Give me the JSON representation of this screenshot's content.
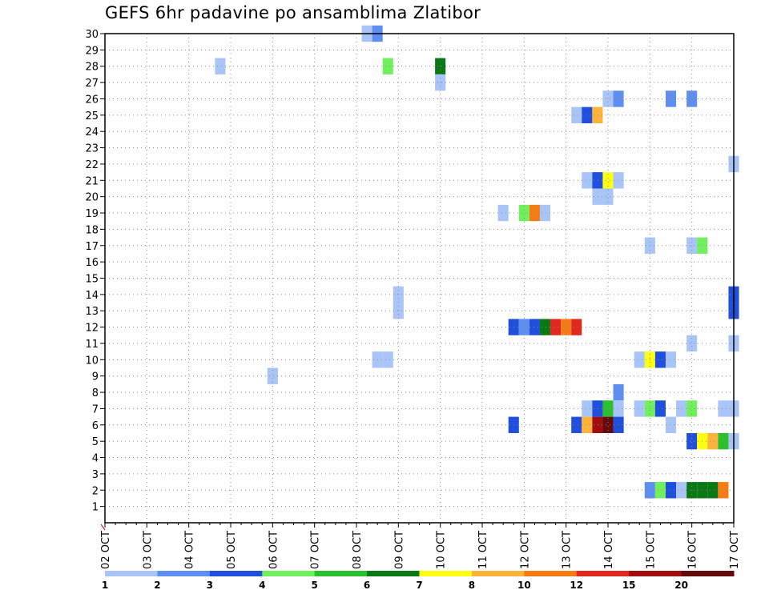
{
  "chart_data": {
    "type": "heatmap",
    "title": "GEFS 6hr padavine po ansamblima Zlatibor",
    "xlabel": "",
    "ylabel": "",
    "y_ticks": [
      1,
      2,
      3,
      4,
      5,
      6,
      7,
      8,
      9,
      10,
      11,
      12,
      13,
      14,
      15,
      16,
      17,
      18,
      19,
      20,
      21,
      22,
      23,
      24,
      25,
      26,
      27,
      28,
      29,
      30
    ],
    "ylim": [
      0,
      30
    ],
    "x_ticks": [
      "02 OCT",
      "03 OCT",
      "04 OCT",
      "05 OCT",
      "06 OCT",
      "07 OCT",
      "08 OCT",
      "09 OCT",
      "10 OCT",
      "11 OCT",
      "12 OCT",
      "13 OCT",
      "14 OCT",
      "15 OCT",
      "16 OCT",
      "17 OCT"
    ],
    "x_unit": "days from 02 OCT 00Z, 6h steps",
    "xlim": [
      0,
      15
    ],
    "grid": true,
    "colorbar": {
      "position": "bottom",
      "labels": [
        "1",
        "2",
        "3",
        "4",
        "5",
        "6",
        "7",
        "8",
        "10",
        "12",
        "15",
        "20"
      ],
      "colors": [
        "#a9c4f7",
        "#5e8ff0",
        "#1f4fdc",
        "#6ff05c",
        "#2cc02c",
        "#0a7814",
        "#ffff14",
        "#ffb33a",
        "#f57b14",
        "#e0281e",
        "#a00e10",
        "#640a0a"
      ]
    },
    "cells": [
      {
        "member": 30,
        "day": 6.25,
        "value": 1
      },
      {
        "member": 30,
        "day": 6.5,
        "value": 2
      },
      {
        "member": 28,
        "day": 2.75,
        "value": 1
      },
      {
        "member": 28,
        "day": 6.75,
        "value": 4
      },
      {
        "member": 28,
        "day": 8.0,
        "value": 6
      },
      {
        "member": 27,
        "day": 8.0,
        "value": 1
      },
      {
        "member": 26,
        "day": 12.0,
        "value": 1
      },
      {
        "member": 26,
        "day": 12.25,
        "value": 2
      },
      {
        "member": 26,
        "day": 13.5,
        "value": 2
      },
      {
        "member": 26,
        "day": 14.0,
        "value": 2
      },
      {
        "member": 25,
        "day": 11.25,
        "value": 1
      },
      {
        "member": 25,
        "day": 11.5,
        "value": 3
      },
      {
        "member": 25,
        "day": 11.75,
        "value": 9
      },
      {
        "member": 22,
        "day": 15.0,
        "value": 1
      },
      {
        "member": 21,
        "day": 11.5,
        "value": 1
      },
      {
        "member": 21,
        "day": 11.75,
        "value": 3
      },
      {
        "member": 21,
        "day": 12.0,
        "value": 7
      },
      {
        "member": 21,
        "day": 12.25,
        "value": 1
      },
      {
        "member": 20,
        "day": 11.75,
        "value": 1
      },
      {
        "member": 20,
        "day": 12.0,
        "value": 1
      },
      {
        "member": 19,
        "day": 9.5,
        "value": 1
      },
      {
        "member": 19,
        "day": 10.0,
        "value": 4
      },
      {
        "member": 19,
        "day": 10.25,
        "value": 10
      },
      {
        "member": 19,
        "day": 10.5,
        "value": 1
      },
      {
        "member": 17,
        "day": 13.0,
        "value": 1
      },
      {
        "member": 17,
        "day": 14.0,
        "value": 1
      },
      {
        "member": 17,
        "day": 14.25,
        "value": 4
      },
      {
        "member": 14,
        "day": 7.0,
        "value": 1
      },
      {
        "member": 14,
        "day": 15.0,
        "value": 3
      },
      {
        "member": 13,
        "day": 7.0,
        "value": 1
      },
      {
        "member": 13,
        "day": 15.0,
        "value": 3
      },
      {
        "member": 12,
        "day": 9.75,
        "value": 3
      },
      {
        "member": 12,
        "day": 10.0,
        "value": 2
      },
      {
        "member": 12,
        "day": 10.25,
        "value": 3
      },
      {
        "member": 12,
        "day": 10.5,
        "value": 6
      },
      {
        "member": 12,
        "day": 10.75,
        "value": 12
      },
      {
        "member": 12,
        "day": 11.0,
        "value": 10
      },
      {
        "member": 12,
        "day": 11.25,
        "value": 12
      },
      {
        "member": 11,
        "day": 14.0,
        "value": 1
      },
      {
        "member": 11,
        "day": 15.0,
        "value": 1
      },
      {
        "member": 10,
        "day": 6.5,
        "value": 1
      },
      {
        "member": 10,
        "day": 6.75,
        "value": 1
      },
      {
        "member": 10,
        "day": 12.75,
        "value": 1
      },
      {
        "member": 10,
        "day": 13.0,
        "value": 7
      },
      {
        "member": 10,
        "day": 13.25,
        "value": 3
      },
      {
        "member": 10,
        "day": 13.5,
        "value": 1
      },
      {
        "member": 9,
        "day": 4.0,
        "value": 1
      },
      {
        "member": 8,
        "day": 12.25,
        "value": 2
      },
      {
        "member": 7,
        "day": 11.5,
        "value": 1
      },
      {
        "member": 7,
        "day": 11.75,
        "value": 3
      },
      {
        "member": 7,
        "day": 12.0,
        "value": 5
      },
      {
        "member": 7,
        "day": 12.25,
        "value": 1
      },
      {
        "member": 7,
        "day": 12.75,
        "value": 1
      },
      {
        "member": 7,
        "day": 13.0,
        "value": 4
      },
      {
        "member": 7,
        "day": 13.25,
        "value": 3
      },
      {
        "member": 7,
        "day": 13.75,
        "value": 1
      },
      {
        "member": 7,
        "day": 14.0,
        "value": 4
      },
      {
        "member": 7,
        "day": 14.75,
        "value": 1
      },
      {
        "member": 7,
        "day": 15.0,
        "value": 1
      },
      {
        "member": 6,
        "day": 9.75,
        "value": 3
      },
      {
        "member": 6,
        "day": 11.25,
        "value": 3
      },
      {
        "member": 6,
        "day": 11.5,
        "value": 9
      },
      {
        "member": 6,
        "day": 11.75,
        "value": 15
      },
      {
        "member": 6,
        "day": 12.0,
        "value": 20
      },
      {
        "member": 6,
        "day": 12.25,
        "value": 3
      },
      {
        "member": 6,
        "day": 13.5,
        "value": 1
      },
      {
        "member": 5,
        "day": 14.0,
        "value": 3
      },
      {
        "member": 5,
        "day": 14.25,
        "value": 7
      },
      {
        "member": 5,
        "day": 14.5,
        "value": 8
      },
      {
        "member": 5,
        "day": 14.75,
        "value": 5
      },
      {
        "member": 5,
        "day": 15.0,
        "value": 1
      },
      {
        "member": 2,
        "day": 13.0,
        "value": 2
      },
      {
        "member": 2,
        "day": 13.25,
        "value": 4
      },
      {
        "member": 2,
        "day": 13.5,
        "value": 3
      },
      {
        "member": 2,
        "day": 13.75,
        "value": 1
      },
      {
        "member": 2,
        "day": 14.0,
        "value": 6
      },
      {
        "member": 2,
        "day": 14.25,
        "value": 6
      },
      {
        "member": 2,
        "day": 14.5,
        "value": 6
      },
      {
        "member": 2,
        "day": 14.75,
        "value": 10
      }
    ]
  }
}
